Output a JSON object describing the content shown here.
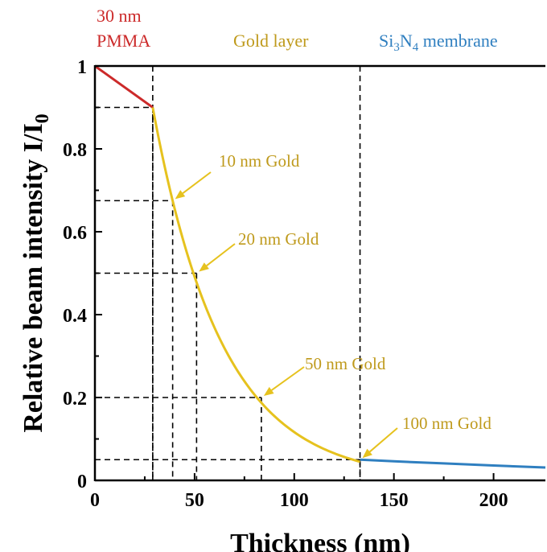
{
  "chart_data": {
    "type": "line",
    "xlabel": "Thickness (nm)",
    "ylabel": "Relative beam intensity I/I",
    "ylabel_subscript": "0",
    "xlim": [
      0,
      226
    ],
    "ylim": [
      0,
      1
    ],
    "xticks": [
      0,
      50,
      100,
      150,
      200
    ],
    "yticks": [
      0,
      0.2,
      0.4,
      0.6,
      0.8,
      1
    ],
    "ytick_labels": [
      "0",
      "0.2",
      "0.4",
      "0.6",
      "0.8",
      "1"
    ],
    "grid": false,
    "colors": {
      "pmma": "#cc2a2a",
      "gold": "#e6c21e",
      "gold_text": "#bf9a1c",
      "membrane": "#2f7fc0",
      "guides": "#000000"
    },
    "regions": [
      {
        "line1": "30 nm",
        "line2": "PMMA",
        "x_from": 0,
        "x_to": 29
      },
      {
        "line1": "Gold layer",
        "x_from": 29,
        "x_to": 133
      },
      {
        "prefix": "Si",
        "sub1": "3",
        "mid": "N",
        "sub2": "4",
        "suffix": " membrane",
        "x_from": 133,
        "x_to": 226
      }
    ],
    "boundaries_x": [
      29,
      133
    ],
    "series": [
      {
        "segment": "pmma",
        "x": [
          0,
          29
        ],
        "y": [
          1.0,
          0.9
        ]
      },
      {
        "segment": "gold",
        "x_start": 29,
        "x_end": 133,
        "y_start": 0.9,
        "decay_per_nm": 0.0288
      },
      {
        "segment": "membrane",
        "x": [
          133,
          150,
          175,
          200,
          226
        ],
        "y": [
          0.05,
          0.046,
          0.041,
          0.036,
          0.031
        ]
      }
    ],
    "annotations": [
      {
        "text": "10 nm Gold",
        "x": 39,
        "y": 0.675
      },
      {
        "text": "20 nm Gold",
        "x": 51,
        "y": 0.5
      },
      {
        "text": "50 nm Gold",
        "x": 83.5,
        "y": 0.2
      },
      {
        "text": "100 nm Gold",
        "x": 133,
        "y": 0.05
      }
    ],
    "guide_points": [
      {
        "x": 29,
        "y": 0.9
      },
      {
        "x": 39,
        "y": 0.675
      },
      {
        "x": 51,
        "y": 0.5
      },
      {
        "x": 83.5,
        "y": 0.2
      },
      {
        "x": 133,
        "y": 0.05
      }
    ]
  }
}
